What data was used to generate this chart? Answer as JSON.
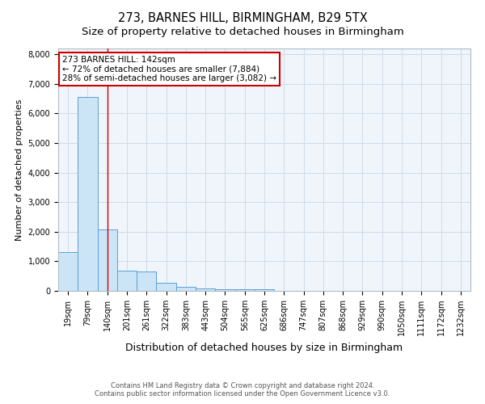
{
  "title": "273, BARNES HILL, BIRMINGHAM, B29 5TX",
  "subtitle": "Size of property relative to detached houses in Birmingham",
  "xlabel": "Distribution of detached houses by size in Birmingham",
  "ylabel": "Number of detached properties",
  "categories": [
    "19sqm",
    "79sqm",
    "140sqm",
    "201sqm",
    "261sqm",
    "322sqm",
    "383sqm",
    "443sqm",
    "504sqm",
    "565sqm",
    "625sqm",
    "686sqm",
    "747sqm",
    "807sqm",
    "868sqm",
    "929sqm",
    "990sqm",
    "1050sqm",
    "1111sqm",
    "1172sqm",
    "1232sqm"
  ],
  "values": [
    1300,
    6550,
    2070,
    670,
    650,
    280,
    140,
    95,
    60,
    45,
    45,
    0,
    0,
    0,
    0,
    0,
    0,
    0,
    0,
    0,
    0
  ],
  "bar_color": "#cce5f6",
  "bar_edge_color": "#5a9fd4",
  "bar_edge_width": 0.7,
  "highlight_index": 2,
  "highlight_color": "#cc0000",
  "grid_color": "#d0dce8",
  "background_color": "#f0f5fb",
  "annotation_text": "273 BARNES HILL: 142sqm\n← 72% of detached houses are smaller (7,884)\n28% of semi-detached houses are larger (3,082) →",
  "annotation_box_color": "#cc0000",
  "footnote1": "Contains HM Land Registry data © Crown copyright and database right 2024.",
  "footnote2": "Contains public sector information licensed under the Open Government Licence v3.0.",
  "title_fontsize": 10.5,
  "subtitle_fontsize": 9.5,
  "xlabel_fontsize": 9,
  "ylabel_fontsize": 8,
  "tick_fontsize": 7,
  "annot_fontsize": 7.5,
  "ylim": [
    0,
    8200
  ],
  "yticks": [
    0,
    1000,
    2000,
    3000,
    4000,
    5000,
    6000,
    7000,
    8000
  ]
}
